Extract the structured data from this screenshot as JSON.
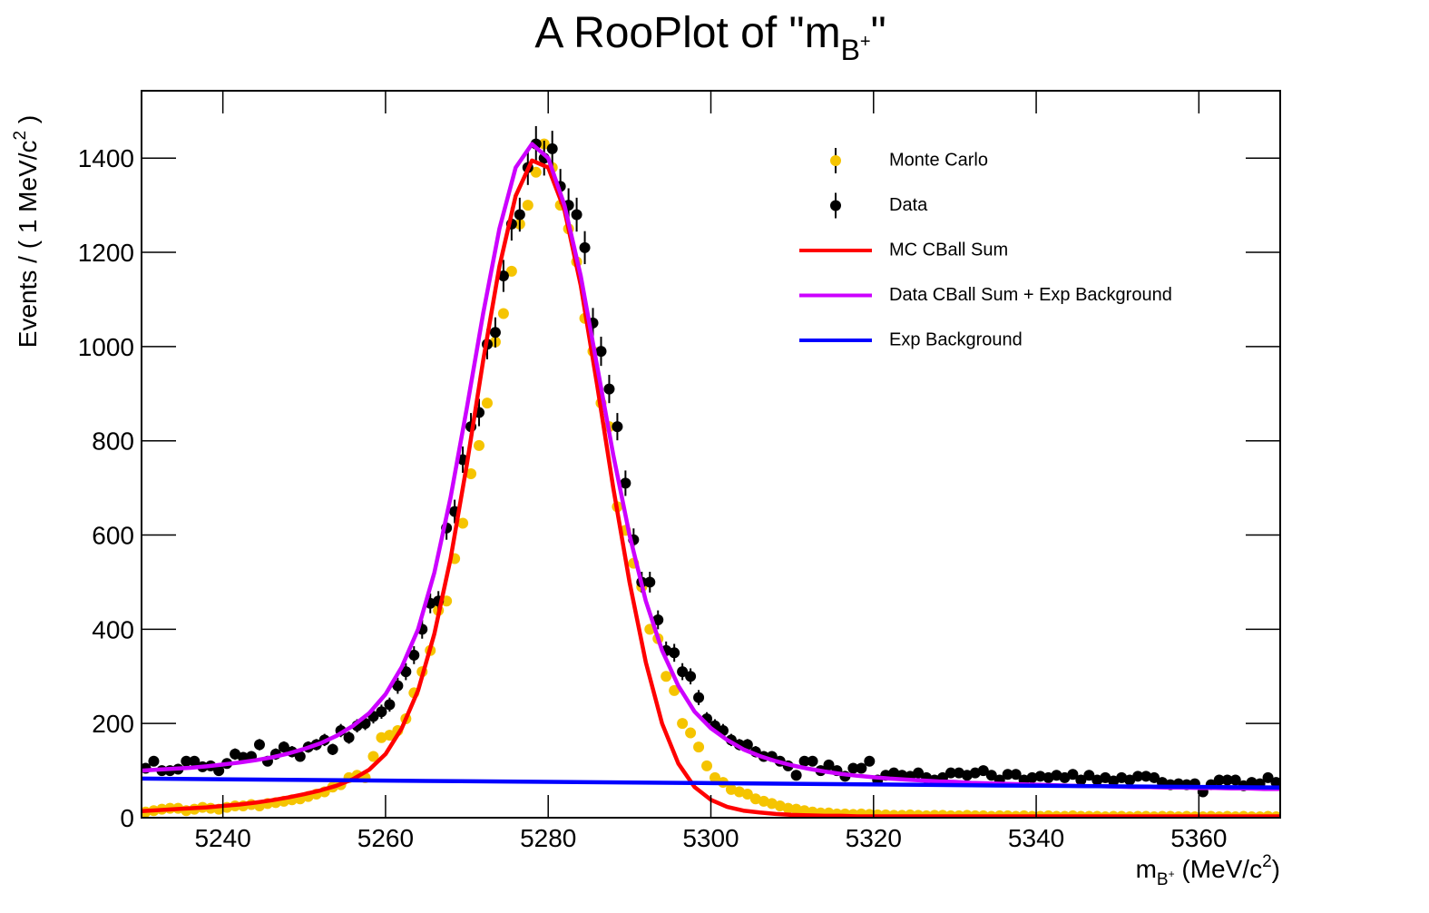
{
  "chart_data": {
    "type": "line",
    "title": {
      "text": "A RooPlot of \"m",
      "subscript": "B",
      "subscript_sup": "+",
      "end": "\""
    },
    "xlabel": {
      "text": "m",
      "subscript": "B",
      "subscript_sup": "+",
      "unit": " (MeV/c",
      "unit_sup": "2",
      "end": ")"
    },
    "ylabel": {
      "text": "Events / ( 1 MeV/c",
      "sup": "2",
      "end": " )"
    },
    "xlim": [
      5230,
      5370
    ],
    "ylim": [
      0,
      1543
    ],
    "xticks": [
      5240,
      5260,
      5280,
      5300,
      5320,
      5340,
      5360
    ],
    "yticks": [
      0,
      200,
      400,
      600,
      800,
      1000,
      1200,
      1400
    ],
    "legend": "upper right",
    "x": [
      5230.5,
      5231.5,
      5232.5,
      5233.5,
      5234.5,
      5235.5,
      5236.5,
      5237.5,
      5238.5,
      5239.5,
      5240.5,
      5241.5,
      5242.5,
      5243.5,
      5244.5,
      5245.5,
      5246.5,
      5247.5,
      5248.5,
      5249.5,
      5250.5,
      5251.5,
      5252.5,
      5253.5,
      5254.5,
      5255.5,
      5256.5,
      5257.5,
      5258.5,
      5259.5,
      5260.5,
      5261.5,
      5262.5,
      5263.5,
      5264.5,
      5265.5,
      5266.5,
      5267.5,
      5268.5,
      5269.5,
      5270.5,
      5271.5,
      5272.5,
      5273.5,
      5274.5,
      5275.5,
      5276.5,
      5277.5,
      5278.5,
      5279.5,
      5280.5,
      5281.5,
      5282.5,
      5283.5,
      5284.5,
      5285.5,
      5286.5,
      5287.5,
      5288.5,
      5289.5,
      5290.5,
      5291.5,
      5292.5,
      5293.5,
      5294.5,
      5295.5,
      5296.5,
      5297.5,
      5298.5,
      5299.5,
      5300.5,
      5301.5,
      5302.5,
      5303.5,
      5304.5,
      5305.5,
      5306.5,
      5307.5,
      5308.5,
      5309.5,
      5310.5,
      5311.5,
      5312.5,
      5313.5,
      5314.5,
      5315.5,
      5316.5,
      5317.5,
      5318.5,
      5319.5,
      5320.5,
      5321.5,
      5322.5,
      5323.5,
      5324.5,
      5325.5,
      5326.5,
      5327.5,
      5328.5,
      5329.5,
      5330.5,
      5331.5,
      5332.5,
      5333.5,
      5334.5,
      5335.5,
      5336.5,
      5337.5,
      5338.5,
      5339.5,
      5340.5,
      5341.5,
      5342.5,
      5343.5,
      5344.5,
      5345.5,
      5346.5,
      5347.5,
      5348.5,
      5349.5,
      5350.5,
      5351.5,
      5352.5,
      5353.5,
      5354.5,
      5355.5,
      5356.5,
      5357.5,
      5358.5,
      5359.5,
      5360.5,
      5361.5,
      5362.5,
      5363.5,
      5364.5,
      5365.5,
      5366.5,
      5367.5,
      5368.5,
      5369.5
    ],
    "series": [
      {
        "name": "Monte Carlo",
        "type": "scatter",
        "color": "#f5c400",
        "values": [
          12,
          15,
          18,
          20,
          20,
          15,
          18,
          22,
          20,
          18,
          22,
          25,
          25,
          28,
          25,
          30,
          32,
          35,
          38,
          40,
          45,
          50,
          55,
          65,
          70,
          85,
          90,
          85,
          130,
          170,
          175,
          185,
          210,
          265,
          310,
          355,
          440,
          460,
          550,
          625,
          730,
          790,
          880,
          1010,
          1070,
          1160,
          1260,
          1300,
          1370,
          1430,
          1380,
          1300,
          1250,
          1180,
          1060,
          990,
          880,
          830,
          660,
          610,
          540,
          490,
          400,
          380,
          300,
          270,
          200,
          180,
          150,
          110,
          85,
          75,
          60,
          55,
          50,
          40,
          35,
          30,
          25,
          20,
          18,
          15,
          12,
          10,
          10,
          8,
          8,
          7,
          8,
          7,
          6,
          6,
          5,
          5,
          6,
          5,
          4,
          5,
          5,
          4,
          4,
          5,
          4,
          4,
          3,
          4,
          4,
          3,
          4,
          3,
          3,
          4,
          3,
          3,
          4,
          3,
          3,
          3,
          2,
          3,
          3,
          2,
          3,
          3,
          2,
          3,
          3,
          2,
          3,
          2,
          2,
          3,
          2,
          3,
          2,
          3,
          2,
          2,
          3,
          2
        ]
      },
      {
        "name": "Data",
        "type": "scatter",
        "color": "#000000",
        "values": [
          105,
          120,
          100,
          100,
          103,
          120,
          120,
          108,
          110,
          100,
          115,
          135,
          128,
          130,
          155,
          120,
          135,
          150,
          140,
          130,
          150,
          155,
          165,
          145,
          185,
          170,
          195,
          200,
          215,
          225,
          240,
          280,
          310,
          345,
          400,
          455,
          460,
          615,
          650,
          760,
          830,
          860,
          1005,
          1030,
          1150,
          1260,
          1280,
          1380,
          1430,
          1400,
          1420,
          1340,
          1300,
          1280,
          1210,
          1050,
          990,
          910,
          830,
          710,
          590,
          500,
          500,
          420,
          355,
          350,
          310,
          300,
          255,
          210,
          195,
          185,
          165,
          155,
          155,
          140,
          130,
          130,
          120,
          110,
          90,
          120,
          120,
          100,
          112,
          100,
          88,
          105,
          105,
          120,
          80,
          90,
          95,
          90,
          88,
          95,
          85,
          80,
          85,
          95,
          95,
          90,
          95,
          100,
          90,
          80,
          92,
          92,
          80,
          85,
          88,
          85,
          90,
          85,
          92,
          80,
          90,
          80,
          85,
          78,
          85,
          80,
          88,
          88,
          85,
          75,
          70,
          72,
          70,
          72,
          55,
          70,
          80,
          80,
          80,
          68,
          75,
          72,
          85,
          75
        ],
        "errors": [
          10,
          11,
          10,
          10,
          10,
          11,
          11,
          10,
          10,
          10,
          11,
          12,
          11,
          11,
          12,
          11,
          12,
          12,
          12,
          11,
          12,
          12,
          13,
          12,
          14,
          13,
          14,
          14,
          15,
          15,
          15,
          17,
          18,
          19,
          20,
          21,
          21,
          25,
          25,
          28,
          29,
          29,
          32,
          32,
          34,
          35,
          36,
          37,
          38,
          37,
          38,
          37,
          36,
          36,
          35,
          32,
          31,
          30,
          29,
          27,
          24,
          22,
          22,
          20,
          19,
          19,
          18,
          17,
          16,
          14,
          14,
          14,
          13,
          12,
          12,
          12,
          11,
          11,
          11,
          10,
          9,
          11,
          11,
          10,
          11,
          10,
          9,
          10,
          10,
          11,
          9,
          9,
          10,
          9,
          9,
          10,
          9,
          9,
          9,
          10,
          10,
          9,
          10,
          10,
          9,
          9,
          10,
          10,
          9,
          9,
          9,
          9,
          9,
          9,
          10,
          9,
          9,
          9,
          9,
          9,
          9,
          9,
          9,
          9,
          9,
          9,
          8,
          8,
          8,
          8,
          7,
          8,
          9,
          9,
          9,
          8,
          9,
          8,
          9,
          9
        ]
      },
      {
        "name": "MC CBall Sum",
        "type": "line",
        "color": "#ff0000",
        "x": [
          5230,
          5232,
          5234,
          5236,
          5238,
          5240,
          5242,
          5244,
          5246,
          5248,
          5250,
          5252,
          5254,
          5256,
          5258,
          5260,
          5262,
          5264,
          5266,
          5268,
          5270,
          5272,
          5274,
          5276,
          5278,
          5280,
          5282,
          5284,
          5286,
          5288,
          5290,
          5292,
          5294,
          5296,
          5298,
          5300,
          5302,
          5304,
          5306,
          5308,
          5310,
          5312,
          5314,
          5316,
          5318,
          5320,
          5322,
          5324,
          5326,
          5328,
          5330,
          5332,
          5334,
          5336,
          5338,
          5340,
          5342,
          5344,
          5346,
          5348,
          5350,
          5352,
          5354,
          5356,
          5358,
          5360,
          5362,
          5364,
          5366,
          5368,
          5370
        ],
        "values": [
          14,
          16,
          18,
          20,
          22,
          25,
          28,
          32,
          37,
          43,
          50,
          58,
          68,
          82,
          102,
          135,
          190,
          270,
          390,
          550,
          750,
          970,
          1170,
          1320,
          1395,
          1380,
          1290,
          1130,
          920,
          700,
          500,
          330,
          200,
          115,
          65,
          38,
          23,
          15,
          11,
          8,
          6,
          5,
          4,
          4,
          3,
          3,
          3,
          3,
          3,
          3,
          3,
          3,
          3,
          3,
          3,
          3,
          3,
          3,
          3,
          3,
          3,
          3,
          3,
          3,
          3,
          3,
          3,
          3,
          3,
          3,
          3
        ]
      },
      {
        "name": "Data CBall Sum + Exp Background",
        "type": "line",
        "color": "#cc00ff",
        "x": [
          5230,
          5232,
          5234,
          5236,
          5238,
          5240,
          5242,
          5244,
          5246,
          5248,
          5250,
          5252,
          5254,
          5256,
          5258,
          5260,
          5262,
          5264,
          5266,
          5268,
          5270,
          5272,
          5274,
          5276,
          5278,
          5280,
          5282,
          5284,
          5286,
          5288,
          5290,
          5292,
          5294,
          5296,
          5298,
          5300,
          5302,
          5304,
          5306,
          5308,
          5310,
          5312,
          5314,
          5316,
          5318,
          5320,
          5322,
          5324,
          5326,
          5328,
          5330,
          5332,
          5334,
          5336,
          5338,
          5340,
          5342,
          5344,
          5346,
          5348,
          5350,
          5352,
          5354,
          5356,
          5358,
          5360,
          5362,
          5364,
          5366,
          5368,
          5370
        ],
        "values": [
          100,
          102,
          104,
          106,
          109,
          113,
          117,
          122,
          128,
          136,
          146,
          158,
          174,
          195,
          222,
          262,
          320,
          400,
          520,
          680,
          870,
          1070,
          1250,
          1380,
          1430,
          1400,
          1300,
          1150,
          960,
          770,
          600,
          460,
          355,
          280,
          225,
          190,
          165,
          145,
          131,
          120,
          111,
          104,
          98,
          93,
          89,
          86,
          83,
          81,
          79,
          77,
          76,
          74,
          73,
          72,
          71,
          70,
          69,
          68,
          67,
          67,
          66,
          65,
          65,
          64,
          64,
          63,
          63,
          62,
          62,
          61,
          61
        ]
      },
      {
        "name": "Exp Background",
        "type": "line",
        "color": "#0000ff",
        "x": [
          5230,
          5265,
          5300,
          5335,
          5370
        ],
        "values": [
          83,
          78,
          73.5,
          68.5,
          64
        ]
      }
    ]
  }
}
